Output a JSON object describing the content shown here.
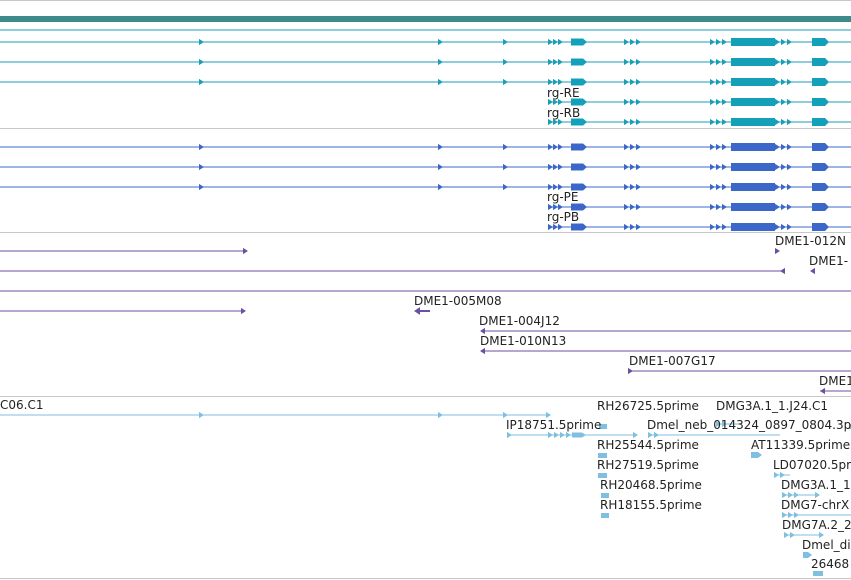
{
  "colors": {
    "top_bar": "#3d8b8b",
    "divider": "#c8c8c8",
    "teal": "#1a9fb5",
    "teal_exon": "#13a0b8",
    "blue": "#3b68c8",
    "purple": "#6b4fa0",
    "light_blue": "#7fbfe0",
    "label": "#222222"
  },
  "tracks": {
    "transcripts_teal": {
      "rows": [
        {
          "label": ""
        },
        {
          "label": ""
        },
        {
          "label": ""
        },
        {
          "label": "rg-RE"
        },
        {
          "label": "rg-RB"
        }
      ]
    },
    "transcripts_blue": {
      "rows": [
        {
          "label": ""
        },
        {
          "label": ""
        },
        {
          "label": ""
        },
        {
          "label": "rg-PE"
        },
        {
          "label": "rg-PB"
        }
      ]
    },
    "clones_purple": {
      "labels": [
        "DME1-012N",
        "DME1-",
        "DME1-005M08",
        "DME1-004J12",
        "DME1-010N13",
        "DME1-007G17",
        "DME1"
      ]
    },
    "ests_light": {
      "labels": [
        "C06.C1",
        "RH26725.5prime",
        "DMG3A.1_1.J24.C1",
        "IP18751.5prime",
        "Dmel_neb_014324_0897_0804.3p",
        "RH25544.5prime",
        "AT11339.5prime",
        "RH27519.5prime",
        "LD07020.5prime",
        "RH20468.5prime",
        "DMG3A.1_1",
        "RH18155.5prime",
        "DMG7-chrX",
        "DMG7A.2_2",
        "Dmel_dig",
        "26468"
      ]
    }
  }
}
